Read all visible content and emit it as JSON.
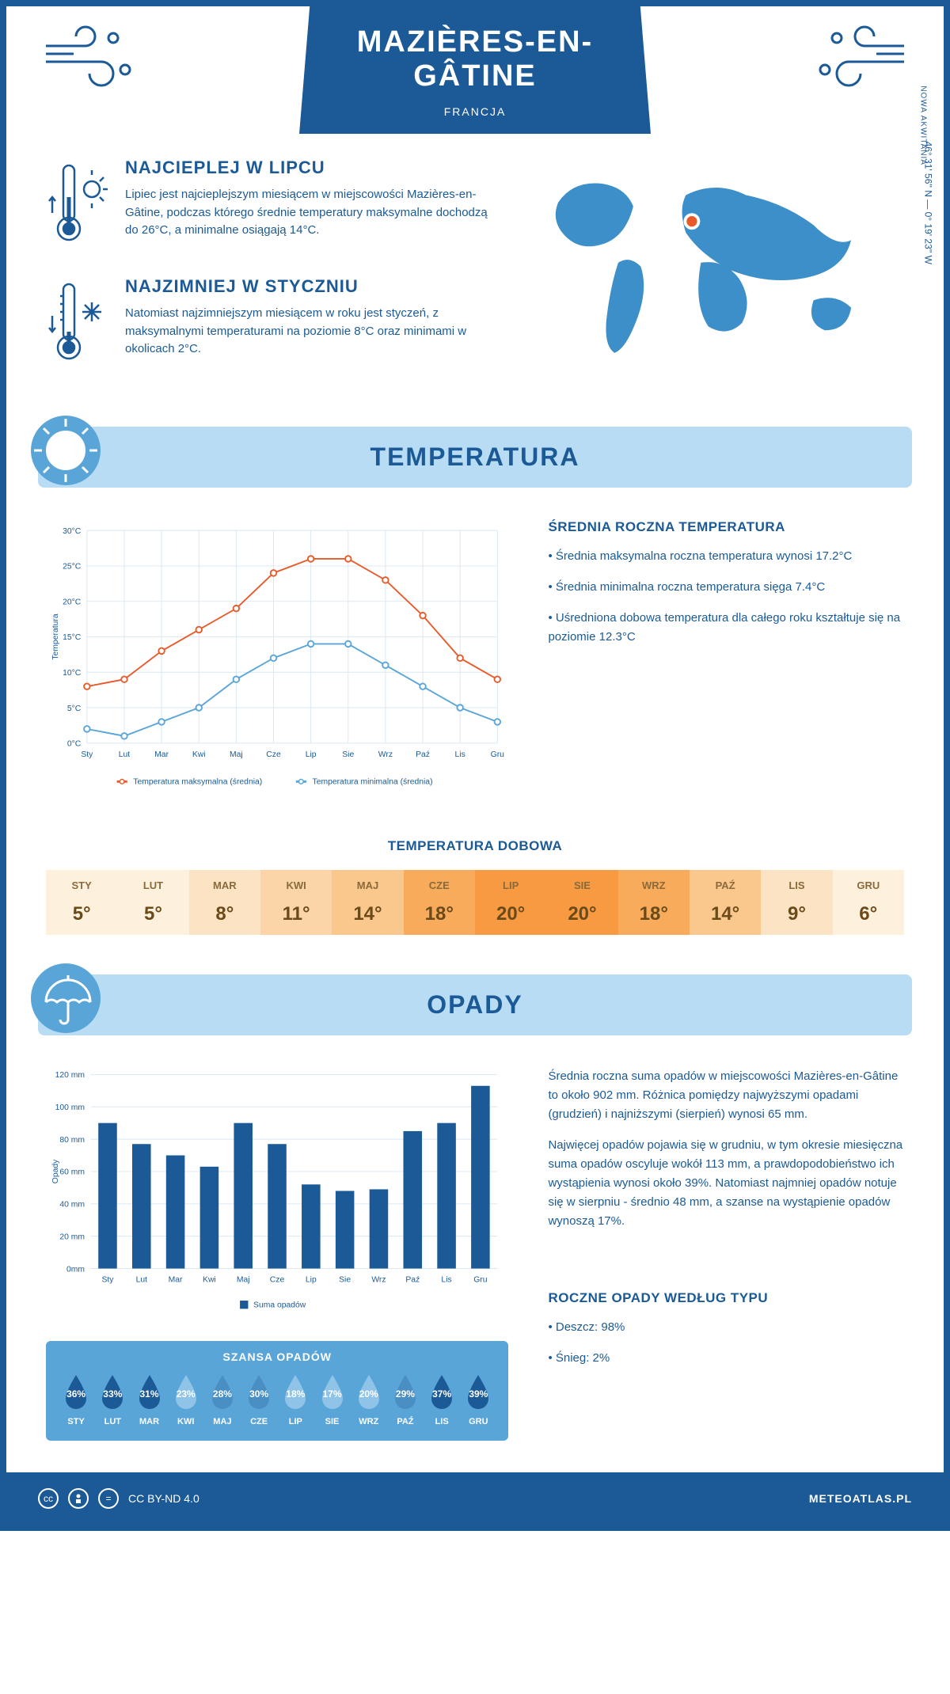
{
  "header": {
    "city": "MAZIÈRES-EN-GÂTINE",
    "country": "FRANCJA"
  },
  "coords": "46° 31' 56'' N — 0° 19' 23'' W",
  "region": "NOWA AKWITANIA",
  "facts": {
    "hot": {
      "title": "NAJCIEPLEJ W LIPCU",
      "text": "Lipiec jest najcieplejszym miesiącem w miejscowości Mazières-en-Gâtine, podczas którego średnie temperatury maksymalne dochodzą do 26°C, a minimalne osiągają 14°C."
    },
    "cold": {
      "title": "NAJZIMNIEJ W STYCZNIU",
      "text": "Natomiast najzimniejszym miesiącem w roku jest styczeń, z maksymalnymi temperaturami na poziomie 8°C oraz minimami w okolicach 2°C."
    }
  },
  "temp_section": {
    "title": "TEMPERATURA",
    "info_title": "ŚREDNIA ROCZNA TEMPERATURA",
    "bullets": [
      "• Średnia maksymalna roczna temperatura wynosi 17.2°C",
      "• Średnia minimalna roczna temperatura sięga 7.4°C",
      "• Uśredniona dobowa temperatura dla całego roku kształtuje się na poziomie 12.3°C"
    ],
    "chart": {
      "type": "line",
      "months": [
        "Sty",
        "Lut",
        "Mar",
        "Kwi",
        "Maj",
        "Cze",
        "Lip",
        "Sie",
        "Wrz",
        "Paź",
        "Lis",
        "Gru"
      ],
      "ylabel": "Temperatura",
      "ylim": [
        0,
        30
      ],
      "ytick_step": 5,
      "ytick_labels": [
        "0°C",
        "5°C",
        "10°C",
        "15°C",
        "20°C",
        "25°C",
        "30°C"
      ],
      "series": [
        {
          "name": "Temperatura maksymalna (średnia)",
          "color": "#e85a2a",
          "values": [
            8,
            9,
            13,
            16,
            19,
            24,
            26,
            26,
            23,
            18,
            12,
            9
          ]
        },
        {
          "name": "Temperatura minimalna (średnia)",
          "color": "#5aa5d8",
          "values": [
            2,
            1,
            3,
            5,
            9,
            12,
            14,
            14,
            11,
            8,
            5,
            3
          ]
        }
      ],
      "grid_color": "#d8e8f4",
      "marker": "circle",
      "marker_size": 4,
      "line_width": 2,
      "background": "#ffffff",
      "label_fontsize": 11
    },
    "daily": {
      "title": "TEMPERATURA DOBOWA",
      "months": [
        "STY",
        "LUT",
        "MAR",
        "KWI",
        "MAJ",
        "CZE",
        "LIP",
        "SIE",
        "WRZ",
        "PAŹ",
        "LIS",
        "GRU"
      ],
      "values": [
        "5°",
        "5°",
        "8°",
        "11°",
        "14°",
        "18°",
        "20°",
        "20°",
        "18°",
        "14°",
        "9°",
        "6°"
      ],
      "colors": [
        "#fdf0dd",
        "#fdf0dd",
        "#fce3c4",
        "#fbd5a8",
        "#fac78c",
        "#f8ab5a",
        "#f79a42",
        "#f79a42",
        "#f8ab5a",
        "#fac78c",
        "#fce3c4",
        "#fdf0dd"
      ]
    }
  },
  "precip_section": {
    "title": "OPADY",
    "info_text1": "Średnia roczna suma opadów w miejscowości Mazières-en-Gâtine to około 902 mm. Różnica pomiędzy najwyższymi opadami (grudzień) i najniższymi (sierpień) wynosi 65 mm.",
    "info_text2": "Najwięcej opadów pojawia się w grudniu, w tym okresie miesięczna suma opadów oscyluje wokół 113 mm, a prawdopodobieństwo ich wystąpienia wynosi około 39%. Natomiast najmniej opadów notuje się w sierpniu - średnio 48 mm, a szanse na wystąpienie opadów wynoszą 17%.",
    "chart": {
      "type": "bar",
      "months": [
        "Sty",
        "Lut",
        "Mar",
        "Kwi",
        "Maj",
        "Cze",
        "Lip",
        "Sie",
        "Wrz",
        "Paź",
        "Lis",
        "Gru"
      ],
      "ylabel": "Opady",
      "values": [
        90,
        77,
        70,
        63,
        90,
        77,
        52,
        48,
        49,
        85,
        90,
        113
      ],
      "ylim": [
        0,
        120
      ],
      "ytick_step": 20,
      "ytick_labels": [
        "0mm",
        "20 mm",
        "40 mm",
        "60 mm",
        "80 mm",
        "100 mm",
        "120 mm"
      ],
      "bar_color": "#1b5a96",
      "grid_color": "#d8e8f4",
      "bar_width": 0.55,
      "legend": "Suma opadów",
      "label_fontsize": 11
    },
    "chance": {
      "title": "SZANSA OPADÓW",
      "months": [
        "STY",
        "LUT",
        "MAR",
        "KWI",
        "MAJ",
        "CZE",
        "LIP",
        "SIE",
        "WRZ",
        "PAŹ",
        "LIS",
        "GRU"
      ],
      "values": [
        "36%",
        "33%",
        "31%",
        "23%",
        "28%",
        "30%",
        "18%",
        "17%",
        "20%",
        "29%",
        "37%",
        "39%"
      ],
      "drop_colors": [
        "#1b5a96",
        "#1b5a96",
        "#1b5a96",
        "#8fc4e8",
        "#4a8fc4",
        "#4a8fc4",
        "#8fc4e8",
        "#8fc4e8",
        "#8fc4e8",
        "#4a8fc4",
        "#1b5a96",
        "#1b5a96"
      ]
    },
    "bytype": {
      "title": "ROCZNE OPADY WEDŁUG TYPU",
      "rain": "• Deszcz: 98%",
      "snow": "• Śnieg: 2%"
    }
  },
  "footer": {
    "license": "CC BY-ND 4.0",
    "site": "METEOATLAS.PL"
  },
  "colors": {
    "primary": "#1b5a96",
    "light_blue": "#b8dcf4",
    "mid_blue": "#5aa5d8"
  }
}
